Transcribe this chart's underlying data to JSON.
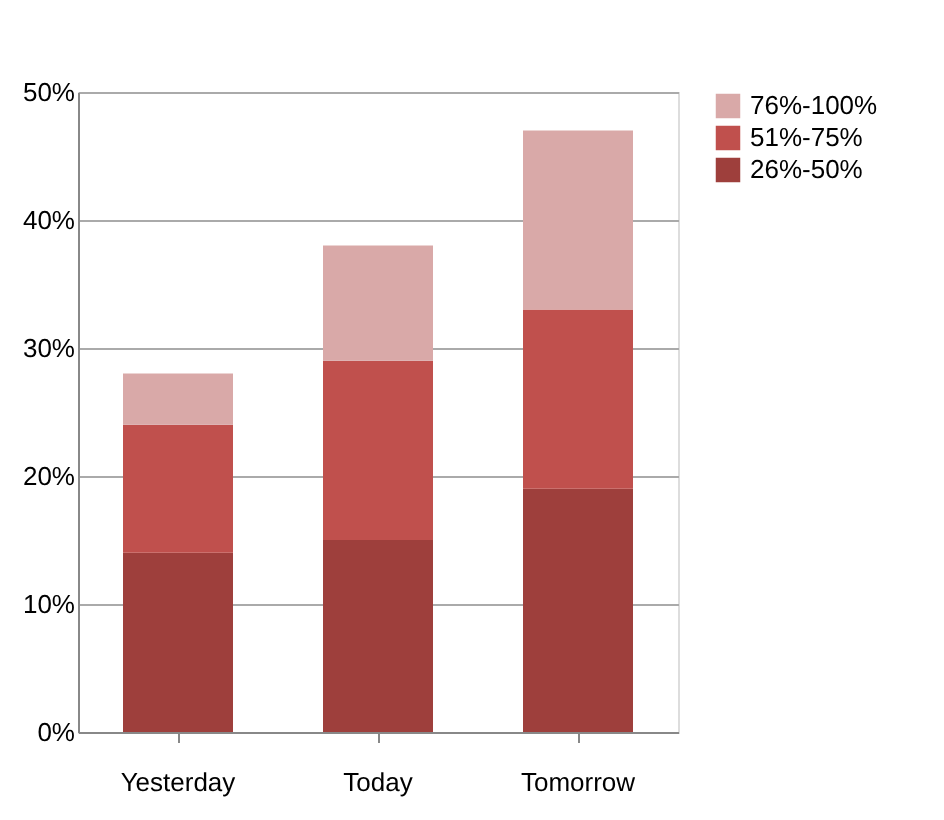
{
  "chart_data": {
    "type": "bar",
    "stacked": true,
    "categories": [
      "Yesterday",
      "Today",
      "Tomorrow"
    ],
    "series": [
      {
        "name": "26%-50%",
        "color": "#9e3f3c",
        "values": [
          14,
          15,
          19
        ]
      },
      {
        "name": "51%-75%",
        "color": "#c0504d",
        "values": [
          10,
          14,
          14
        ]
      },
      {
        "name": "76%-100%",
        "color": "#d9a9a8",
        "values": [
          4,
          9,
          14
        ]
      }
    ],
    "ylim": [
      0,
      50
    ],
    "yticks": [
      {
        "value": 0,
        "label": "0%"
      },
      {
        "value": 10,
        "label": "10%"
      },
      {
        "value": 20,
        "label": "20%"
      },
      {
        "value": 30,
        "label": "30%"
      },
      {
        "value": 40,
        "label": "40%"
      },
      {
        "value": 50,
        "label": "50%"
      }
    ],
    "grid": "y",
    "legend": "right"
  }
}
